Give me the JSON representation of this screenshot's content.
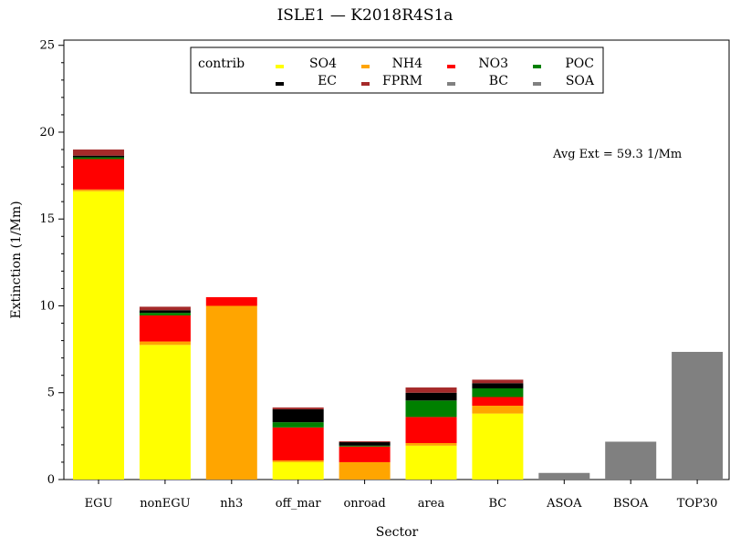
{
  "chart_data": {
    "type": "bar",
    "stacked": true,
    "title": "ISLE1 — K2018R4S1a",
    "xlabel": "Sector",
    "ylabel": "Extinction (1/Mm)",
    "ylim": [
      0,
      25.3
    ],
    "yticks": [
      0,
      5,
      10,
      15,
      20,
      25
    ],
    "y_minor_step": 1,
    "grid": false,
    "legend_placement": "top-center",
    "legend_title": "contrib",
    "annotation": "Avg Ext =  59.3 1/Mm",
    "categories": [
      "EGU",
      "nonEGU",
      "nh3",
      "off_mar",
      "onroad",
      "area",
      "BC",
      "ASOA",
      "BSOA",
      "TOP30"
    ],
    "series": [
      {
        "name": "SO4",
        "color": "#ffff00",
        "values": [
          16.6,
          7.75,
          0,
          1.0,
          0,
          1.95,
          3.8,
          0,
          0,
          0
        ]
      },
      {
        "name": "NH4",
        "color": "#ffa500",
        "values": [
          0.1,
          0.2,
          10.0,
          0.1,
          1.0,
          0.15,
          0.45,
          0,
          0,
          0
        ]
      },
      {
        "name": "NO3",
        "color": "#ff0000",
        "values": [
          1.75,
          1.5,
          0.5,
          1.9,
          0.9,
          1.5,
          0.5,
          0,
          0,
          0
        ]
      },
      {
        "name": "POC",
        "color": "#008000",
        "values": [
          0.1,
          0.15,
          0,
          0.3,
          0.05,
          0.95,
          0.5,
          0,
          0,
          0
        ]
      },
      {
        "name": "EC",
        "color": "#000000",
        "values": [
          0.1,
          0.15,
          0,
          0.75,
          0.2,
          0.45,
          0.3,
          0,
          0,
          0
        ]
      },
      {
        "name": "FPRM",
        "color": "#a52a2a",
        "values": [
          0.35,
          0.2,
          0,
          0.1,
          0.05,
          0.3,
          0.2,
          0,
          0,
          0
        ]
      },
      {
        "name": "BC",
        "color": "#808080",
        "values": [
          0,
          0,
          0,
          0,
          0,
          0,
          0,
          0,
          0,
          0
        ]
      },
      {
        "name": "SOA",
        "color": "#808080",
        "values": [
          0,
          0,
          0,
          0,
          0,
          0,
          0,
          0.38,
          2.18,
          7.35
        ]
      }
    ]
  }
}
